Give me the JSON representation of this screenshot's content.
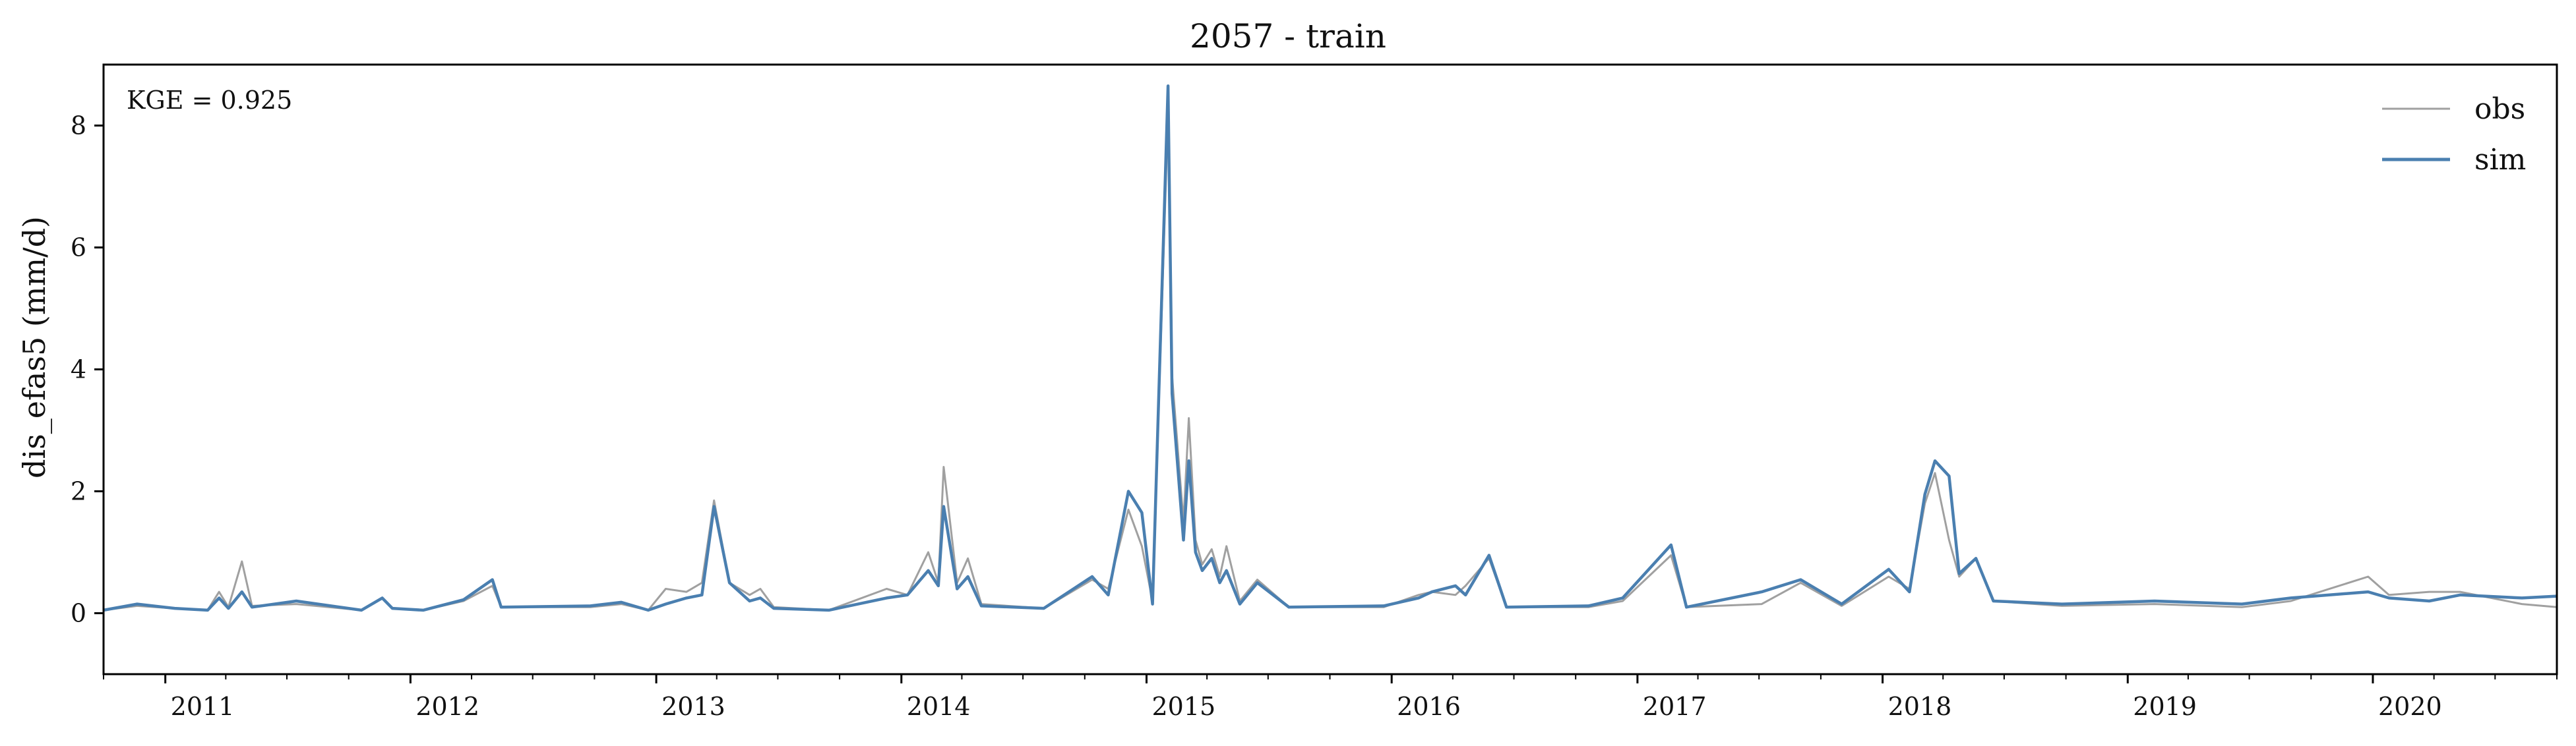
{
  "chart_data": {
    "type": "line",
    "title": "2057 - train",
    "xlabel": "",
    "ylabel": "dis_efas5 (mm/d)",
    "xlim": [
      "2010-10-01",
      "2020-10-01"
    ],
    "ylim": [
      -1,
      9
    ],
    "yticks": [
      0,
      2,
      4,
      6,
      8
    ],
    "xticks": [
      "2011",
      "2012",
      "2013",
      "2014",
      "2015",
      "2016",
      "2017",
      "2018",
      "2019",
      "2020"
    ],
    "grid": false,
    "legend_position": "upper-right",
    "annotation": "KGE = 0.925",
    "series": [
      {
        "name": "obs",
        "color": "#a0a0a0",
        "points": [
          [
            "2010-10-01",
            0.05
          ],
          [
            "2010-11-20",
            0.12
          ],
          [
            "2011-01-15",
            0.08
          ],
          [
            "2011-03-05",
            0.05
          ],
          [
            "2011-03-22",
            0.35
          ],
          [
            "2011-04-05",
            0.1
          ],
          [
            "2011-04-25",
            0.85
          ],
          [
            "2011-05-10",
            0.12
          ],
          [
            "2011-07-15",
            0.15
          ],
          [
            "2011-10-20",
            0.05
          ],
          [
            "2011-11-20",
            0.25
          ],
          [
            "2011-12-05",
            0.08
          ],
          [
            "2012-01-20",
            0.05
          ],
          [
            "2012-03-20",
            0.2
          ],
          [
            "2012-05-02",
            0.45
          ],
          [
            "2012-05-15",
            0.1
          ],
          [
            "2012-09-25",
            0.1
          ],
          [
            "2012-11-10",
            0.15
          ],
          [
            "2012-12-20",
            0.05
          ],
          [
            "2013-01-15",
            0.4
          ],
          [
            "2013-02-15",
            0.35
          ],
          [
            "2013-03-10",
            0.5
          ],
          [
            "2013-03-28",
            1.85
          ],
          [
            "2013-04-20",
            0.5
          ],
          [
            "2013-05-20",
            0.3
          ],
          [
            "2013-06-05",
            0.4
          ],
          [
            "2013-06-25",
            0.1
          ],
          [
            "2013-09-15",
            0.05
          ],
          [
            "2013-12-10",
            0.4
          ],
          [
            "2014-01-10",
            0.3
          ],
          [
            "2014-02-10",
            1.0
          ],
          [
            "2014-02-25",
            0.5
          ],
          [
            "2014-03-05",
            2.4
          ],
          [
            "2014-03-25",
            0.5
          ],
          [
            "2014-04-10",
            0.9
          ],
          [
            "2014-04-30",
            0.15
          ],
          [
            "2014-08-01",
            0.08
          ],
          [
            "2014-10-12",
            0.55
          ],
          [
            "2014-11-05",
            0.4
          ],
          [
            "2014-12-05",
            1.7
          ],
          [
            "2014-12-25",
            1.1
          ],
          [
            "2015-01-10",
            0.2
          ],
          [
            "2015-02-02",
            8.2
          ],
          [
            "2015-02-08",
            3.9
          ],
          [
            "2015-02-25",
            1.5
          ],
          [
            "2015-03-05",
            3.2
          ],
          [
            "2015-03-15",
            1.2
          ],
          [
            "2015-03-25",
            0.8
          ],
          [
            "2015-04-08",
            1.05
          ],
          [
            "2015-04-20",
            0.6
          ],
          [
            "2015-04-30",
            1.1
          ],
          [
            "2015-05-20",
            0.2
          ],
          [
            "2015-06-15",
            0.55
          ],
          [
            "2015-08-01",
            0.1
          ],
          [
            "2015-12-20",
            0.1
          ],
          [
            "2016-02-10",
            0.3
          ],
          [
            "2016-03-01",
            0.35
          ],
          [
            "2016-04-05",
            0.3
          ],
          [
            "2016-04-20",
            0.45
          ],
          [
            "2016-05-25",
            0.9
          ],
          [
            "2016-06-20",
            0.1
          ],
          [
            "2016-10-20",
            0.1
          ],
          [
            "2016-12-10",
            0.2
          ],
          [
            "2017-02-20",
            0.95
          ],
          [
            "2017-03-15",
            0.1
          ],
          [
            "2017-07-05",
            0.15
          ],
          [
            "2017-09-01",
            0.5
          ],
          [
            "2017-11-01",
            0.12
          ],
          [
            "2018-01-10",
            0.6
          ],
          [
            "2018-02-10",
            0.4
          ],
          [
            "2018-03-05",
            1.8
          ],
          [
            "2018-03-20",
            2.3
          ],
          [
            "2018-04-10",
            1.2
          ],
          [
            "2018-04-25",
            0.6
          ],
          [
            "2018-05-20",
            0.9
          ],
          [
            "2018-06-15",
            0.2
          ],
          [
            "2018-09-25",
            0.12
          ],
          [
            "2019-02-10",
            0.15
          ],
          [
            "2019-06-20",
            0.1
          ],
          [
            "2019-09-01",
            0.2
          ],
          [
            "2019-12-25",
            0.6
          ],
          [
            "2020-01-25",
            0.3
          ],
          [
            "2020-03-25",
            0.35
          ],
          [
            "2020-05-10",
            0.35
          ],
          [
            "2020-08-10",
            0.15
          ],
          [
            "2020-10-01",
            0.1
          ]
        ]
      },
      {
        "name": "sim",
        "color": "#4a7fb0",
        "points": [
          [
            "2010-10-01",
            0.05
          ],
          [
            "2010-11-20",
            0.15
          ],
          [
            "2011-01-15",
            0.08
          ],
          [
            "2011-03-05",
            0.05
          ],
          [
            "2011-03-22",
            0.25
          ],
          [
            "2011-04-05",
            0.08
          ],
          [
            "2011-04-25",
            0.35
          ],
          [
            "2011-05-10",
            0.1
          ],
          [
            "2011-07-15",
            0.2
          ],
          [
            "2011-10-20",
            0.05
          ],
          [
            "2011-11-20",
            0.25
          ],
          [
            "2011-12-05",
            0.08
          ],
          [
            "2012-01-20",
            0.05
          ],
          [
            "2012-03-20",
            0.22
          ],
          [
            "2012-05-02",
            0.55
          ],
          [
            "2012-05-15",
            0.1
          ],
          [
            "2012-09-25",
            0.12
          ],
          [
            "2012-11-10",
            0.18
          ],
          [
            "2012-12-20",
            0.05
          ],
          [
            "2013-01-15",
            0.15
          ],
          [
            "2013-02-15",
            0.25
          ],
          [
            "2013-03-10",
            0.3
          ],
          [
            "2013-03-28",
            1.75
          ],
          [
            "2013-04-20",
            0.5
          ],
          [
            "2013-05-20",
            0.2
          ],
          [
            "2013-06-05",
            0.25
          ],
          [
            "2013-06-25",
            0.08
          ],
          [
            "2013-09-15",
            0.05
          ],
          [
            "2013-12-10",
            0.25
          ],
          [
            "2014-01-10",
            0.3
          ],
          [
            "2014-02-10",
            0.7
          ],
          [
            "2014-02-25",
            0.45
          ],
          [
            "2014-03-05",
            1.75
          ],
          [
            "2014-03-25",
            0.4
          ],
          [
            "2014-04-10",
            0.6
          ],
          [
            "2014-04-30",
            0.12
          ],
          [
            "2014-08-01",
            0.08
          ],
          [
            "2014-10-12",
            0.6
          ],
          [
            "2014-11-05",
            0.3
          ],
          [
            "2014-12-05",
            2.0
          ],
          [
            "2014-12-25",
            1.65
          ],
          [
            "2015-01-10",
            0.15
          ],
          [
            "2015-02-02",
            8.65
          ],
          [
            "2015-02-08",
            3.6
          ],
          [
            "2015-02-25",
            1.2
          ],
          [
            "2015-03-05",
            2.5
          ],
          [
            "2015-03-15",
            1.0
          ],
          [
            "2015-03-25",
            0.7
          ],
          [
            "2015-04-08",
            0.9
          ],
          [
            "2015-04-20",
            0.5
          ],
          [
            "2015-04-30",
            0.7
          ],
          [
            "2015-05-20",
            0.15
          ],
          [
            "2015-06-15",
            0.5
          ],
          [
            "2015-08-01",
            0.1
          ],
          [
            "2015-12-20",
            0.12
          ],
          [
            "2016-02-10",
            0.25
          ],
          [
            "2016-03-01",
            0.35
          ],
          [
            "2016-04-05",
            0.45
          ],
          [
            "2016-04-20",
            0.3
          ],
          [
            "2016-05-25",
            0.95
          ],
          [
            "2016-06-20",
            0.1
          ],
          [
            "2016-10-20",
            0.12
          ],
          [
            "2016-12-10",
            0.25
          ],
          [
            "2017-02-20",
            1.12
          ],
          [
            "2017-03-15",
            0.1
          ],
          [
            "2017-07-05",
            0.35
          ],
          [
            "2017-09-01",
            0.55
          ],
          [
            "2017-11-01",
            0.15
          ],
          [
            "2018-01-10",
            0.72
          ],
          [
            "2018-02-10",
            0.35
          ],
          [
            "2018-03-05",
            1.95
          ],
          [
            "2018-03-20",
            2.5
          ],
          [
            "2018-04-10",
            2.25
          ],
          [
            "2018-04-25",
            0.65
          ],
          [
            "2018-05-20",
            0.9
          ],
          [
            "2018-06-15",
            0.2
          ],
          [
            "2018-09-25",
            0.15
          ],
          [
            "2019-02-10",
            0.2
          ],
          [
            "2019-06-20",
            0.15
          ],
          [
            "2019-09-01",
            0.25
          ],
          [
            "2019-12-25",
            0.35
          ],
          [
            "2020-01-25",
            0.25
          ],
          [
            "2020-03-25",
            0.2
          ],
          [
            "2020-05-10",
            0.3
          ],
          [
            "2020-08-10",
            0.25
          ],
          [
            "2020-10-01",
            0.28
          ]
        ]
      }
    ]
  }
}
